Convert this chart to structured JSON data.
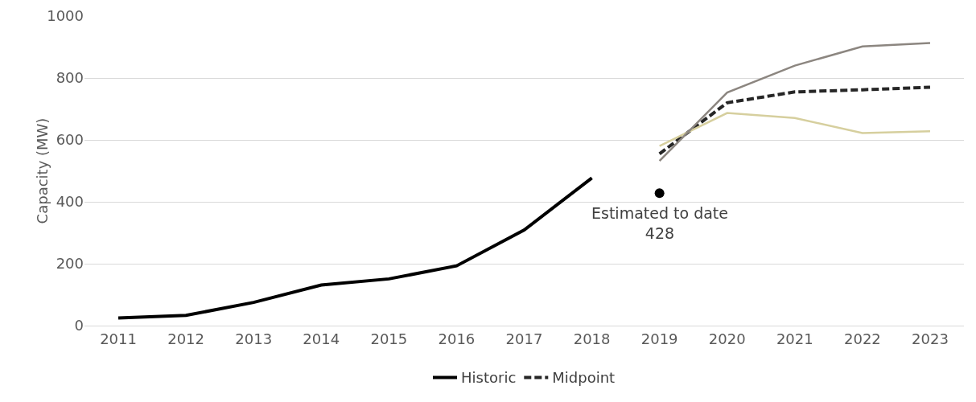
{
  "chart_data": {
    "type": "line",
    "ylabel": "Capacity (MW)",
    "categories": [
      "2011",
      "2012",
      "2013",
      "2014",
      "2015",
      "2016",
      "2017",
      "2018",
      "2019",
      "2020",
      "2021",
      "2022",
      "2023"
    ],
    "ylim": [
      0,
      1000
    ],
    "yticks": [
      0,
      200,
      400,
      600,
      800,
      1000
    ],
    "grid": "y",
    "legend": "bottom",
    "marker": "none",
    "series": [
      {
        "name": "Historic",
        "color": "#000000",
        "line_style": "solid",
        "values": [
          25,
          33,
          75,
          131,
          151,
          193,
          309,
          477,
          null,
          null,
          null,
          null,
          null
        ]
      },
      {
        "name": "Midpoint",
        "color": "#262626",
        "line_style": "dashed",
        "values": [
          null,
          null,
          null,
          null,
          null,
          null,
          null,
          null,
          555,
          720,
          755,
          762,
          770
        ]
      },
      {
        "color": "#d6cf9e",
        "line_style": "solid",
        "values": [
          null,
          null,
          null,
          null,
          null,
          null,
          null,
          null,
          580,
          687,
          671,
          622,
          628
        ]
      },
      {
        "color": "#8c8680",
        "line_style": "solid",
        "values": [
          null,
          null,
          null,
          null,
          null,
          null,
          null,
          null,
          532,
          753,
          840,
          902,
          913
        ]
      },
      {
        "type": "scatter",
        "color": "#000000",
        "marker": "circle",
        "values": [
          null,
          null,
          null,
          null,
          null,
          null,
          null,
          null,
          428,
          null,
          null,
          null,
          null
        ]
      }
    ],
    "annotations": [
      {
        "text": "Estimated to date\n428",
        "x": "2019",
        "y": 428
      }
    ]
  }
}
